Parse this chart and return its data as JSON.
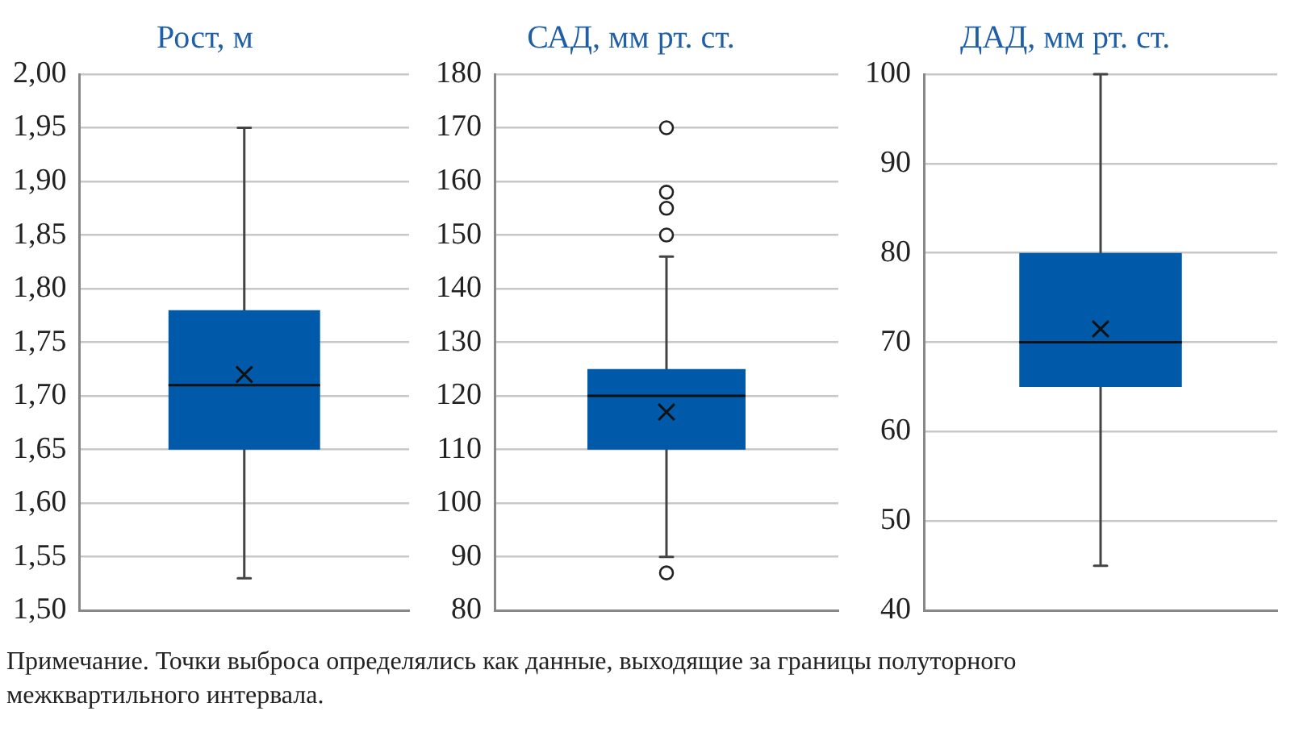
{
  "chart_data": [
    {
      "type": "box",
      "title": "Рост, м",
      "categories": [
        null
      ],
      "color": "#005aa9",
      "grid": "y",
      "ylim": [
        1.5,
        2.0
      ],
      "yticks": [
        {
          "value": 1.5,
          "label": "1,50"
        },
        {
          "value": 1.55,
          "label": "1,55"
        },
        {
          "value": 1.6,
          "label": "1,60"
        },
        {
          "value": 1.65,
          "label": "1,65"
        },
        {
          "value": 1.7,
          "label": "1,70"
        },
        {
          "value": 1.75,
          "label": "1,75"
        },
        {
          "value": 1.8,
          "label": "1,80"
        },
        {
          "value": 1.85,
          "label": "1,85"
        },
        {
          "value": 1.9,
          "label": "1,90"
        },
        {
          "value": 1.95,
          "label": "1,95"
        },
        {
          "value": 2.0,
          "label": "2,00"
        }
      ],
      "boxes": [
        {
          "low": 1.53,
          "q1": 1.65,
          "median": 1.71,
          "q3": 1.78,
          "high": 1.95,
          "mean": 1.72
        }
      ],
      "annotations": [
        "Примечание. Точки выброса определялись как данные, выходящие за границы полуторного межквартильного интервала."
      ]
    },
    {
      "type": "box",
      "title": "САД, мм рт. ст.",
      "categories": [
        null
      ],
      "color": "#005aa9",
      "grid": "y",
      "ylim": [
        80,
        180
      ],
      "yticks": [
        80,
        90,
        100,
        110,
        120,
        130,
        140,
        150,
        160,
        170,
        180
      ],
      "boxes": [
        {
          "low": 90,
          "q1": 110,
          "median": 120,
          "q3": 125,
          "high": 146,
          "mean": 117,
          "outliers": [
            170,
            158,
            155,
            150,
            87
          ]
        }
      ]
    },
    {
      "type": "box",
      "title": "ДАД, мм рт. ст.",
      "categories": [
        null
      ],
      "color": "#005aa9",
      "grid": "y",
      "ylim": [
        40,
        100
      ],
      "yticks": [
        40,
        50,
        60,
        70,
        80,
        90,
        100
      ],
      "boxes": [
        {
          "low": 45,
          "q1": 65,
          "median": 70,
          "q3": 80,
          "high": 100,
          "mean": 71.5
        }
      ]
    }
  ]
}
